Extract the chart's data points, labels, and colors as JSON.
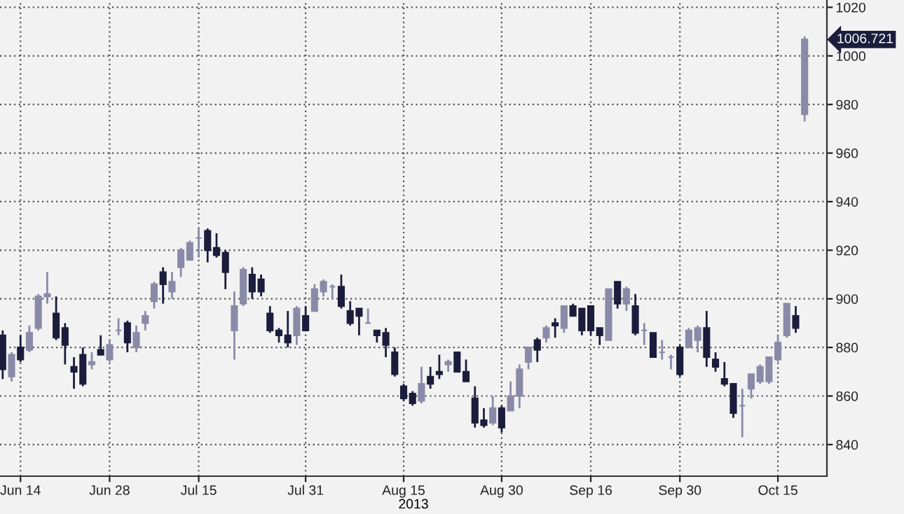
{
  "chart_data": {
    "type": "candlestick",
    "categories": [
      null,
      null,
      "Jun 14",
      null,
      null,
      null,
      null,
      null,
      null,
      null,
      null,
      null,
      "Jun 28",
      null,
      null,
      null,
      null,
      null,
      null,
      null,
      null,
      null,
      "Jul 15",
      null,
      null,
      null,
      null,
      null,
      null,
      null,
      null,
      null,
      null,
      null,
      "Jul 31",
      null,
      null,
      null,
      null,
      null,
      null,
      null,
      null,
      null,
      null,
      "Aug 15",
      null,
      null,
      null,
      null,
      null,
      null,
      null,
      null,
      null,
      null,
      "Aug 30",
      null,
      null,
      null,
      null,
      null,
      null,
      null,
      null,
      null,
      "Sep 16",
      null,
      null,
      null,
      null,
      null,
      null,
      null,
      null,
      null,
      "Sep 30",
      null,
      null,
      null,
      null,
      null,
      null,
      null,
      null,
      null,
      null,
      "Oct 15",
      null,
      null,
      null
    ],
    "ohlc": [
      [
        885,
        887,
        867,
        871
      ],
      [
        868,
        878,
        866,
        877
      ],
      [
        880,
        885,
        874,
        875
      ],
      [
        879,
        889,
        878,
        886
      ],
      [
        888,
        902,
        887,
        901
      ],
      [
        901,
        911,
        898,
        902
      ],
      [
        894,
        901,
        883,
        884
      ],
      [
        888,
        890,
        873,
        881
      ],
      [
        872,
        876,
        863,
        870
      ],
      [
        877,
        880,
        864,
        865
      ],
      [
        873,
        878,
        871,
        874
      ],
      [
        879,
        885,
        877,
        877
      ],
      [
        875,
        883,
        874,
        881
      ],
      [
        887,
        892,
        885,
        887
      ],
      [
        890,
        891,
        878,
        882
      ],
      [
        880,
        889,
        878,
        886
      ],
      [
        890,
        895,
        887,
        893
      ],
      [
        899,
        907,
        896,
        906
      ],
      [
        911,
        913,
        898,
        906
      ],
      [
        903,
        911,
        900,
        907
      ],
      [
        913,
        921,
        909,
        920
      ],
      [
        916,
        924,
        916,
        923
      ],
      [
        925,
        929,
        917,
        925
      ],
      [
        928,
        929,
        915,
        920
      ],
      [
        921,
        927,
        917,
        918
      ],
      [
        919,
        920,
        904,
        911
      ],
      [
        887,
        903,
        875,
        897
      ],
      [
        898,
        913,
        897,
        912
      ],
      [
        910,
        913,
        900,
        903
      ],
      [
        908,
        910,
        901,
        903
      ],
      [
        894,
        897,
        886,
        887
      ],
      [
        887,
        888,
        882,
        885
      ],
      [
        885,
        895,
        880,
        882
      ],
      [
        885,
        897,
        881,
        896
      ],
      [
        893,
        897,
        887,
        887
      ],
      [
        895,
        906,
        895,
        904
      ],
      [
        903,
        908,
        901,
        907
      ],
      [
        905,
        906,
        900,
        905
      ],
      [
        905,
        910,
        896,
        897
      ],
      [
        895,
        899,
        889,
        890
      ],
      [
        896,
        896,
        885,
        893
      ],
      [
        890,
        896,
        890,
        890
      ],
      [
        887,
        887,
        882,
        885
      ],
      [
        886,
        888,
        876,
        881
      ],
      [
        878,
        880,
        868,
        869
      ],
      [
        864,
        865,
        858,
        859
      ],
      [
        861,
        862,
        856,
        857
      ],
      [
        858,
        872,
        857,
        865
      ],
      [
        868,
        872,
        863,
        865
      ],
      [
        870,
        877,
        867,
        869
      ],
      [
        873,
        875,
        870,
        874
      ],
      [
        878,
        878,
        870,
        870
      ],
      [
        870,
        875,
        866,
        866
      ],
      [
        859,
        864,
        847,
        849
      ],
      [
        850,
        855,
        847,
        848
      ],
      [
        849,
        860,
        848,
        855
      ],
      [
        855,
        856,
        845,
        847
      ],
      [
        854,
        866,
        854,
        860
      ],
      [
        860,
        873,
        855,
        871
      ],
      [
        874,
        880,
        871,
        880
      ],
      [
        883,
        884,
        874,
        879
      ],
      [
        884,
        889,
        882,
        888
      ],
      [
        890,
        892,
        884,
        889
      ],
      [
        888,
        897,
        886,
        897
      ],
      [
        897,
        898,
        893,
        893
      ],
      [
        896,
        896,
        885,
        887
      ],
      [
        897,
        897,
        885,
        887
      ],
      [
        888,
        888,
        881,
        885
      ],
      [
        883,
        904,
        883,
        904
      ],
      [
        907,
        907,
        896,
        898
      ],
      [
        898,
        905,
        895,
        904
      ],
      [
        897,
        902,
        885,
        886
      ],
      [
        887,
        890,
        881,
        887
      ],
      [
        886,
        886,
        876,
        876
      ],
      [
        878,
        883,
        875,
        878
      ],
      [
        876,
        877,
        871,
        876
      ],
      [
        880,
        881,
        868,
        869
      ],
      [
        880,
        888,
        880,
        887
      ],
      [
        883,
        889,
        878,
        888
      ],
      [
        888,
        895,
        872,
        876
      ],
      [
        875,
        878,
        870,
        872
      ],
      [
        867,
        874,
        864,
        865
      ],
      [
        865,
        865,
        851,
        853
      ],
      [
        856,
        863,
        843,
        856
      ],
      [
        863,
        869,
        859,
        869
      ],
      [
        866,
        873,
        865,
        872
      ],
      [
        866,
        876,
        865,
        876
      ],
      [
        875,
        885,
        874,
        882
      ],
      [
        885,
        898,
        884,
        898
      ],
      [
        893,
        897,
        886,
        888
      ],
      [
        976,
        1008,
        973,
        1006.721
      ]
    ],
    "colors": [
      "#1c1c3c",
      "#8a8aa8",
      "#1c1c3c",
      "#8a8aa8",
      "#8a8aa8",
      "#8a8aa8",
      "#1c1c3c",
      "#1c1c3c",
      "#1c1c3c",
      "#1c1c3c",
      "#8a8aa8",
      "#1c1c3c",
      "#8a8aa8",
      "#8a8aa8",
      "#1c1c3c",
      "#8a8aa8",
      "#8a8aa8",
      "#8a8aa8",
      "#1c1c3c",
      "#8a8aa8",
      "#8a8aa8",
      "#8a8aa8",
      "#8a8aa8",
      "#1c1c3c",
      "#1c1c3c",
      "#1c1c3c",
      "#8a8aa8",
      "#8a8aa8",
      "#1c1c3c",
      "#1c1c3c",
      "#1c1c3c",
      "#1c1c3c",
      "#1c1c3c",
      "#8a8aa8",
      "#1c1c3c",
      "#8a8aa8",
      "#8a8aa8",
      "#8a8aa8",
      "#1c1c3c",
      "#1c1c3c",
      "#1c1c3c",
      "#8a8aa8",
      "#1c1c3c",
      "#1c1c3c",
      "#1c1c3c",
      "#1c1c3c",
      "#1c1c3c",
      "#8a8aa8",
      "#1c1c3c",
      "#1c1c3c",
      "#8a8aa8",
      "#1c1c3c",
      "#1c1c3c",
      "#1c1c3c",
      "#1c1c3c",
      "#8a8aa8",
      "#1c1c3c",
      "#8a8aa8",
      "#8a8aa8",
      "#8a8aa8",
      "#1c1c3c",
      "#8a8aa8",
      "#1c1c3c",
      "#8a8aa8",
      "#1c1c3c",
      "#1c1c3c",
      "#1c1c3c",
      "#1c1c3c",
      "#8a8aa8",
      "#1c1c3c",
      "#8a8aa8",
      "#1c1c3c",
      "#8a8aa8",
      "#1c1c3c",
      "#8a8aa8",
      "#8a8aa8",
      "#1c1c3c",
      "#8a8aa8",
      "#8a8aa8",
      "#1c1c3c",
      "#1c1c3c",
      "#1c1c3c",
      "#1c1c3c",
      "#8a8aa8",
      "#8a8aa8",
      "#8a8aa8",
      "#8a8aa8",
      "#8a8aa8",
      "#8a8aa8",
      "#1c1c3c",
      "#8a8aa8"
    ],
    "xlabel": "2013",
    "ylim": [
      827,
      1023
    ],
    "yticks": [
      840,
      860,
      880,
      900,
      920,
      940,
      960,
      980,
      1000,
      1020
    ],
    "grid": true,
    "annotations": [
      "1006.721"
    ]
  }
}
